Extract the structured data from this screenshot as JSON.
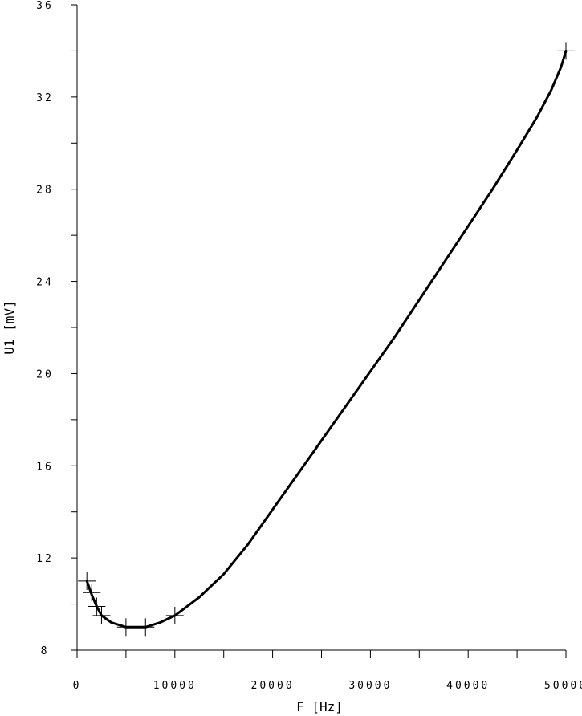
{
  "chart_data": {
    "type": "line",
    "title": "",
    "xlabel": "F [Hz]",
    "ylabel": "U1 [mV]",
    "xlim": [
      0,
      50000
    ],
    "ylim": [
      8,
      36
    ],
    "x_ticks": [
      0,
      10000,
      20000,
      30000,
      40000,
      50000
    ],
    "x_tick_labels": [
      "0",
      "10000",
      "20000",
      "30000",
      "40000",
      "50000"
    ],
    "y_ticks": [
      8,
      12,
      16,
      20,
      24,
      28,
      32,
      36
    ],
    "y_tick_labels": [
      "8",
      "12",
      "16",
      "20",
      "24",
      "28",
      "32",
      "36"
    ],
    "grid": false,
    "series": [
      {
        "markers": "+",
        "points": [
          {
            "x": 1000,
            "y": 11.0
          },
          {
            "x": 1500,
            "y": 10.5
          },
          {
            "x": 2000,
            "y": 9.9
          },
          {
            "x": 2500,
            "y": 9.5
          },
          {
            "x": 5000,
            "y": 9.0
          },
          {
            "x": 7000,
            "y": 9.0
          },
          {
            "x": 10000,
            "y": 9.5
          },
          {
            "x": 50000,
            "y": 34.0
          }
        ],
        "curve": [
          {
            "x": 1000,
            "y": 11.0
          },
          {
            "x": 1500,
            "y": 10.4
          },
          {
            "x": 2000,
            "y": 9.9
          },
          {
            "x": 2500,
            "y": 9.5
          },
          {
            "x": 3500,
            "y": 9.2
          },
          {
            "x": 5000,
            "y": 9.0
          },
          {
            "x": 7000,
            "y": 9.0
          },
          {
            "x": 8500,
            "y": 9.2
          },
          {
            "x": 10000,
            "y": 9.5
          },
          {
            "x": 12500,
            "y": 10.3
          },
          {
            "x": 15000,
            "y": 11.3
          },
          {
            "x": 17500,
            "y": 12.6
          },
          {
            "x": 20000,
            "y": 14.1
          },
          {
            "x": 22500,
            "y": 15.6
          },
          {
            "x": 25000,
            "y": 17.1
          },
          {
            "x": 27500,
            "y": 18.6
          },
          {
            "x": 30000,
            "y": 20.1
          },
          {
            "x": 32500,
            "y": 21.6
          },
          {
            "x": 35000,
            "y": 23.2
          },
          {
            "x": 37500,
            "y": 24.8
          },
          {
            "x": 40000,
            "y": 26.4
          },
          {
            "x": 42500,
            "y": 28.0
          },
          {
            "x": 45000,
            "y": 29.7
          },
          {
            "x": 47000,
            "y": 31.1
          },
          {
            "x": 48500,
            "y": 32.3
          },
          {
            "x": 49500,
            "y": 33.3
          },
          {
            "x": 50000,
            "y": 34.0
          }
        ]
      }
    ]
  }
}
